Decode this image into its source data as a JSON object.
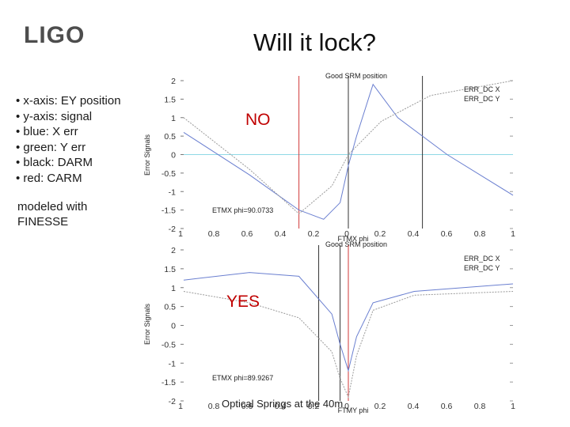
{
  "slide": {
    "logo_text": "LIGO",
    "title": "Will it lock?",
    "bullets": [
      "• x-axis: EY position",
      "• y-axis: signal",
      "• blue: X err",
      "• green: Y err",
      "• black: DARM",
      "• red: CARM"
    ],
    "note_line1": "modeled with",
    "note_line2": "FINESSE",
    "footer": "Optical Springs at the 40m"
  },
  "colors": {
    "blue": "#6a7fd0",
    "green": "#9a9a9a",
    "black": "#333333",
    "red": "#d23a3a",
    "zero_line": "#8fd8e6",
    "answer": "#c00000"
  },
  "chart_data": [
    {
      "type": "line",
      "title": "Good SRM position",
      "xlabel": "FTMX phi",
      "ylabel": "Error Signals",
      "answer": "NO",
      "annotation": "ETMX phi=90.0733",
      "legend": [
        "ERR_DC X",
        "ERR_DC Y"
      ],
      "legend_position": "top-right",
      "xlim": [
        -1,
        1
      ],
      "ylim": [
        -2,
        2
      ],
      "xticks": [
        "1",
        "0.8",
        "0.6",
        "0.4",
        "0.2",
        "0",
        "0.2",
        "0.4",
        "0.6",
        "0.8",
        "1"
      ],
      "yticks": [
        "2",
        "1.5",
        "1",
        "0.5",
        "0",
        "-0.5",
        "-1",
        "-1.5",
        "-2"
      ],
      "series": [
        {
          "name": "ERR_DC X",
          "color": "blue",
          "x": [
            -1,
            -0.6,
            -0.3,
            -0.15,
            -0.05,
            0,
            0.05,
            0.15,
            0.3,
            0.6,
            1
          ],
          "y": [
            0.6,
            -0.55,
            -1.5,
            -1.75,
            -1.3,
            -0.3,
            0.5,
            1.9,
            1.0,
            0.0,
            -1.1
          ]
        },
        {
          "name": "ERR_DC Y",
          "color": "green",
          "x": [
            -1,
            -0.6,
            -0.3,
            -0.1,
            0,
            0.2,
            0.5,
            1
          ],
          "y": [
            1.0,
            -0.4,
            -1.6,
            -0.85,
            0.0,
            0.9,
            1.6,
            2.0
          ]
        }
      ],
      "vlines": [
        {
          "x": -0.3,
          "color": "red"
        },
        {
          "x": 0.0,
          "color": "black"
        },
        {
          "x": 0.45,
          "color": "black"
        }
      ]
    },
    {
      "type": "line",
      "title": "Good SRM position",
      "xlabel": "FTMY phi",
      "ylabel": "Error Signals",
      "answer": "YES",
      "annotation": "ETMX phi=89.9267",
      "legend": [
        "ERR_DC X",
        "ERR_DC Y"
      ],
      "legend_position": "top-right",
      "xlim": [
        -1,
        1
      ],
      "ylim": [
        -2,
        2
      ],
      "xticks": [
        "1",
        "0.8",
        "0.6",
        "0.4",
        "0.2",
        "0",
        "0.2",
        "0.4",
        "0.6",
        "0.8",
        "1"
      ],
      "yticks": [
        "2",
        "1.5",
        "1",
        "0.5",
        "0",
        "-0.5",
        "-1",
        "-1.5",
        "-2"
      ],
      "series": [
        {
          "name": "ERR_DC X",
          "color": "blue",
          "x": [
            -1,
            -0.6,
            -0.3,
            -0.1,
            -0.05,
            0,
            0.05,
            0.15,
            0.4,
            1
          ],
          "y": [
            1.2,
            1.4,
            1.3,
            0.3,
            -0.5,
            -1.2,
            -0.3,
            0.6,
            0.9,
            1.1
          ]
        },
        {
          "name": "ERR_DC Y",
          "color": "green",
          "x": [
            -1,
            -0.6,
            -0.3,
            -0.1,
            -0.05,
            0,
            0.05,
            0.15,
            0.4,
            1
          ],
          "y": [
            0.9,
            0.6,
            0.2,
            -0.7,
            -1.4,
            -1.9,
            -0.8,
            0.4,
            0.8,
            0.9
          ]
        }
      ],
      "vlines": [
        {
          "x": -0.18,
          "color": "black"
        },
        {
          "x": -0.05,
          "color": "black"
        },
        {
          "x": 0.0,
          "color": "red"
        }
      ]
    }
  ]
}
